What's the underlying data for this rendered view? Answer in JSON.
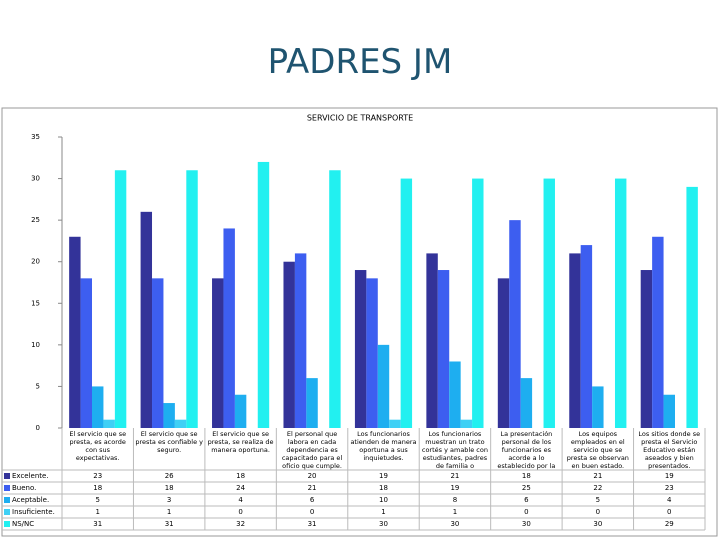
{
  "page_title": "PADRES JM",
  "chart_data": {
    "type": "bar",
    "title": "SERVICIO DE TRANSPORTE",
    "categories": [
      "El servicio que se presta, es acorde con sus expectativas.",
      "El servicio que se presta es confiable y seguro.",
      "El servicio que se presta, se realiza de manera oportuna.",
      "El personal que labora en cada dependencia es capacitado para el oficio que cumple.",
      "Los funcionarios atienden de manera oportuna a sus inquietudes.",
      "Los funcionarios muestran un trato cortés y amable con estudiantes, padres de familia o acudientes.",
      "La presentación personal de los funcionarios es acorde a lo establecido por la Institución.",
      "Los equipos empleados en el servicio que se presta se observan en buen estado.",
      "Los sitios donde se presta el Servicio Educativo están aseados y bien presentados."
    ],
    "series": [
      {
        "name": "Excelente.",
        "color": "#333399",
        "values": [
          23,
          26,
          18,
          20,
          19,
          21,
          18,
          21,
          19
        ]
      },
      {
        "name": "Bueno.",
        "color": "#3d5ef0",
        "values": [
          18,
          18,
          24,
          21,
          18,
          19,
          25,
          22,
          23
        ]
      },
      {
        "name": "Aceptable.",
        "color": "#1eaef0",
        "values": [
          5,
          3,
          4,
          6,
          10,
          8,
          6,
          5,
          4
        ]
      },
      {
        "name": "Insuficiente.",
        "color": "#3fd0f5",
        "values": [
          1,
          1,
          0,
          0,
          1,
          1,
          0,
          0,
          0
        ]
      },
      {
        "name": "NS/NC",
        "color": "#22f0f0",
        "values": [
          31,
          31,
          32,
          31,
          30,
          30,
          30,
          30,
          29
        ]
      }
    ],
    "ylim": [
      0,
      35
    ],
    "yticks": [
      0,
      5,
      10,
      15,
      20,
      25,
      30,
      35
    ],
    "grid": false
  }
}
